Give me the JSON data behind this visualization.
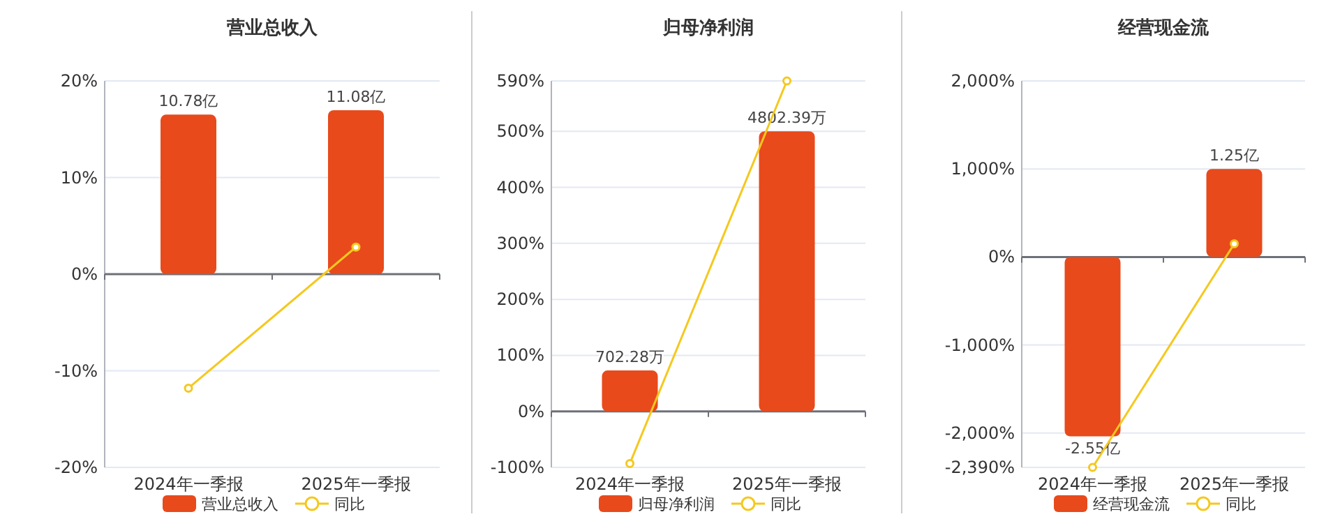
{
  "chart_data": [
    {
      "type": "bar",
      "title": "营业总收入",
      "categories": [
        "2024年一季报",
        "2025年一季报"
      ],
      "ylim": [
        -20,
        20
      ],
      "yticks": [
        {
          "value": 20,
          "label": "20%"
        },
        {
          "value": 10,
          "label": "10%"
        },
        {
          "value": 0,
          "label": "0%"
        },
        {
          "value": -10,
          "label": "-10%"
        },
        {
          "value": -20,
          "label": "-20%"
        }
      ],
      "y2lim": [
        -13.06,
        13.06
      ],
      "grid": "y",
      "legend": "bottom",
      "series": [
        {
          "name": "营业总收入",
          "axis": "y2",
          "color": "#e84a1c",
          "values": [
            10.78,
            11.08
          ],
          "value_labels": [
            "10.78亿",
            "11.08亿"
          ]
        },
        {
          "name": "同比",
          "type": "line",
          "color": "#f5c81e",
          "marker": "circle",
          "values": [
            -11.8,
            2.8
          ]
        }
      ]
    },
    {
      "type": "bar",
      "title": "归母净利润",
      "categories": [
        "2024年一季报",
        "2025年一季报"
      ],
      "ylim": [
        -100,
        590
      ],
      "yticks": [
        {
          "value": 590,
          "label": "590%"
        },
        {
          "value": 500,
          "label": "500%"
        },
        {
          "value": 400,
          "label": "400%"
        },
        {
          "value": 300,
          "label": "300%"
        },
        {
          "value": 200,
          "label": "200%"
        },
        {
          "value": 100,
          "label": "100%"
        },
        {
          "value": 0,
          "label": "0%"
        },
        {
          "value": -100,
          "label": "-100%"
        }
      ],
      "y2lim": [
        -960,
        5667
      ],
      "grid": "y",
      "legend": "bottom",
      "series": [
        {
          "name": "归母净利润",
          "axis": "y2",
          "color": "#e84a1c",
          "values": [
            702.28,
            4802.39
          ],
          "value_labels": [
            "702.28万",
            "4802.39万"
          ]
        },
        {
          "name": "同比",
          "type": "line",
          "color": "#f5c81e",
          "marker": "circle",
          "values": [
            -93,
            590
          ]
        }
      ]
    },
    {
      "type": "bar",
      "title": "经营现金流",
      "categories": [
        "2024年一季报",
        "2025年一季报"
      ],
      "ylim": [
        -2390,
        2000
      ],
      "yticks": [
        {
          "value": 2000,
          "label": "2,000%"
        },
        {
          "value": 1000,
          "label": "1,000%"
        },
        {
          "value": 0,
          "label": "0%"
        },
        {
          "value": -1000,
          "label": "-1,000%"
        },
        {
          "value": -2000,
          "label": "-2,000%"
        },
        {
          "value": -2390,
          "label": "-2,390%"
        }
      ],
      "y2lim": [
        -2.99,
        2.5
      ],
      "grid": "y",
      "legend": "bottom",
      "series": [
        {
          "name": "经营现金流",
          "axis": "y2",
          "color": "#e84a1c",
          "values": [
            -2.55,
            1.25
          ],
          "value_labels": [
            "-2.55亿",
            "1.25亿"
          ]
        },
        {
          "name": "同比",
          "type": "line",
          "color": "#f5c81e",
          "marker": "circle",
          "values": [
            -2390,
            150
          ]
        }
      ]
    }
  ]
}
